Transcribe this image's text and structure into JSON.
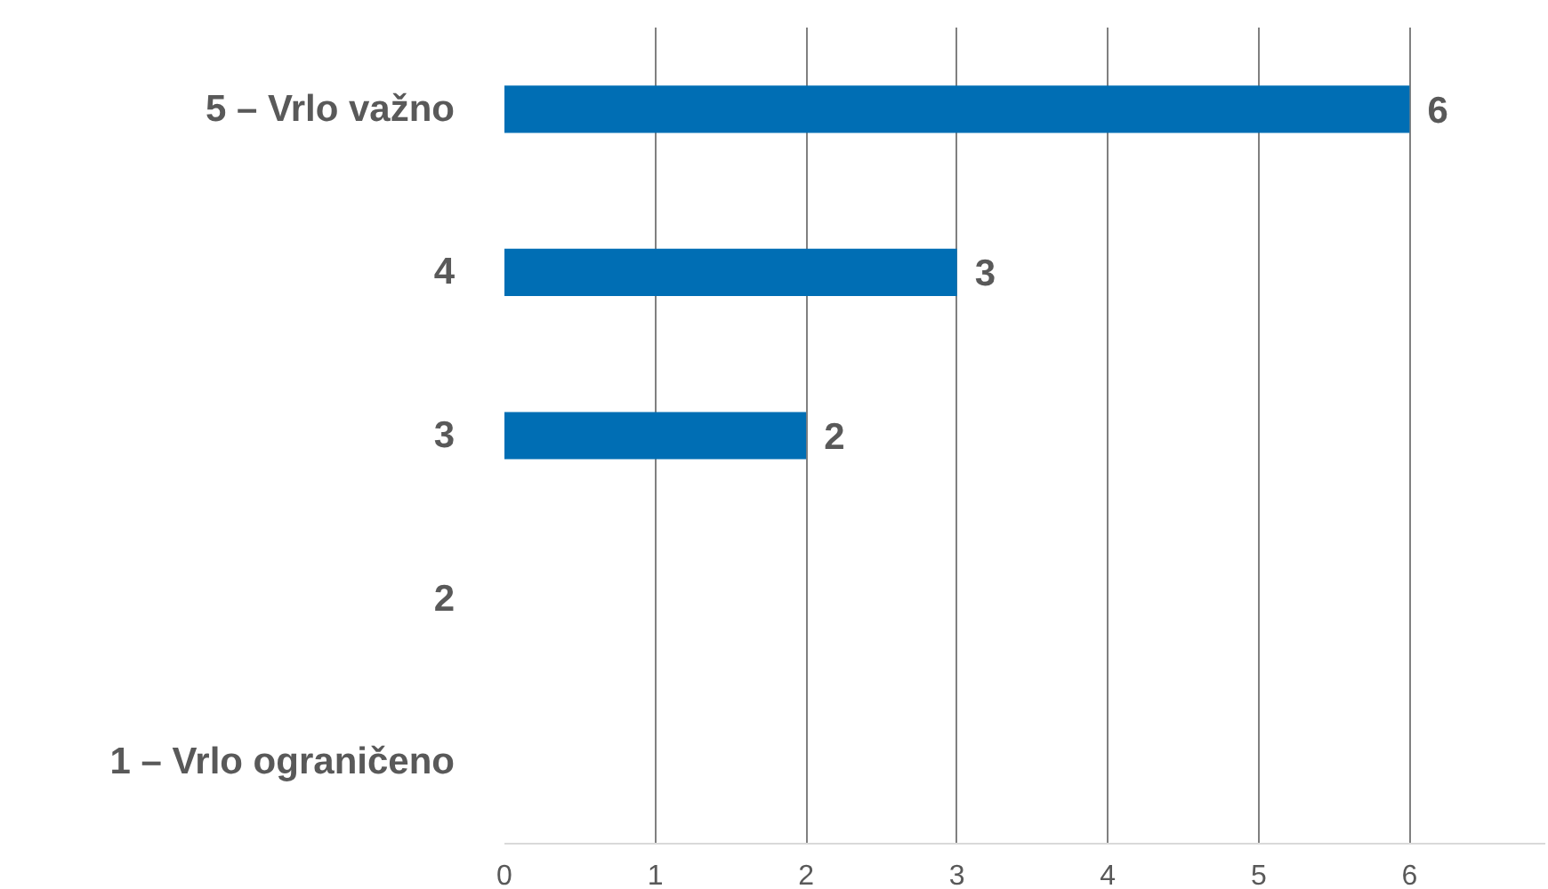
{
  "chart_data": {
    "type": "bar",
    "orientation": "horizontal",
    "categories": [
      "5 – Vrlo važno",
      "4",
      "3",
      "2",
      "1 – Vrlo ograničeno"
    ],
    "values": [
      6,
      3,
      2,
      0,
      0
    ],
    "value_labels": [
      "6",
      "3",
      "2",
      null,
      null
    ],
    "color": "#006eb4",
    "xlim": [
      0,
      6.9
    ],
    "xticks": [
      0,
      1,
      2,
      3,
      4,
      5,
      6
    ],
    "grid": "x"
  }
}
